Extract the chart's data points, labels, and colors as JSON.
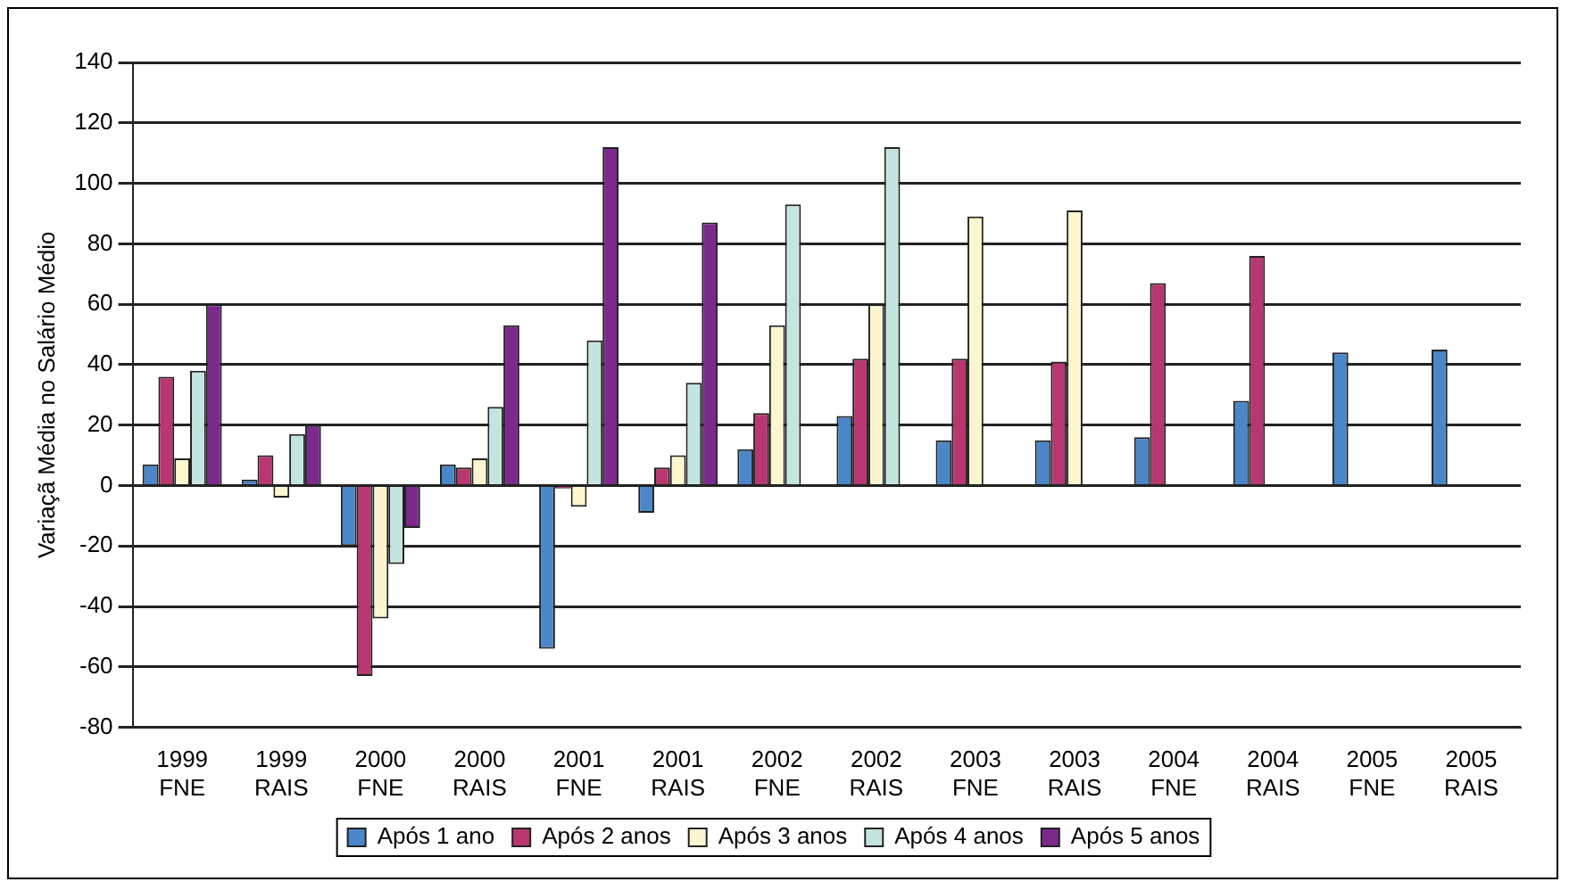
{
  "chart_data": {
    "type": "bar",
    "ylabel": "Variaçã Média no Salário Médio",
    "categories": [
      "1999 FNE",
      "1999 RAIS",
      "2000 FNE",
      "2000 RAIS",
      "2001 FNE",
      "2001 RAIS",
      "2002 FNE",
      "2002 RAIS",
      "2003 FNE",
      "2003 RAIS",
      "2004 FNE",
      "2004 RAIS",
      "2005 FNE",
      "2005 RAIS"
    ],
    "series": [
      {
        "name": "Após 1 ano",
        "color": "#4a86c8",
        "values": [
          7,
          2,
          -20,
          7,
          -54,
          -9,
          12,
          23,
          15,
          15,
          16,
          28,
          44,
          45
        ]
      },
      {
        "name": "Após 2 anos",
        "color": "#b83770",
        "values": [
          36,
          10,
          -63,
          6,
          -1,
          6,
          24,
          42,
          42,
          41,
          67,
          76,
          null,
          null
        ]
      },
      {
        "name": "Após 3 anos",
        "color": "#fbf6cf",
        "values": [
          9,
          -4,
          -44,
          9,
          -7,
          10,
          53,
          60,
          89,
          91,
          null,
          null,
          null,
          null
        ]
      },
      {
        "name": "Após 4 anos",
        "color": "#c4e4e0",
        "values": [
          38,
          17,
          -26,
          26,
          48,
          34,
          93,
          112,
          null,
          null,
          null,
          null,
          null,
          null
        ]
      },
      {
        "name": "Após 5 anos",
        "color": "#7b2a8c",
        "values": [
          60,
          20,
          -14,
          53,
          112,
          87,
          null,
          null,
          null,
          null,
          null,
          null,
          null,
          null
        ]
      }
    ],
    "ylim": [
      -80,
      140
    ],
    "yticks": [
      -80,
      -60,
      -40,
      -20,
      0,
      20,
      40,
      60,
      80,
      100,
      120,
      140
    ],
    "grid": "y",
    "legend": "bottom"
  }
}
